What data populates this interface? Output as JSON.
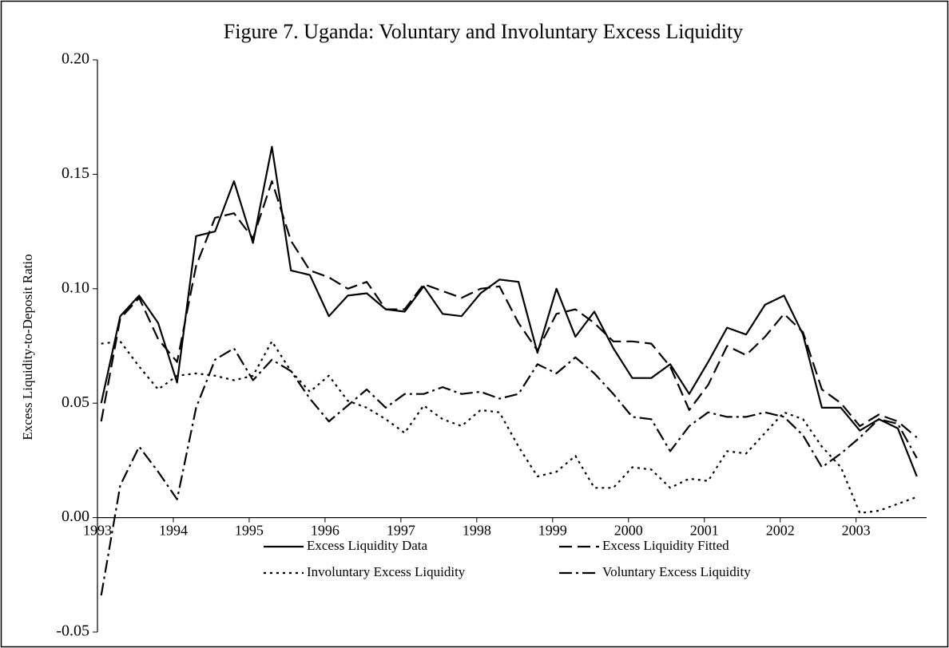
{
  "chart_data": {
    "type": "line",
    "title": "Figure 7. Uganda: Voluntary and Involuntary Excess Liquidity",
    "y_label": "Excess Liquidity-to-Deposit Ratio",
    "x": [
      1993.05,
      1993.3,
      1993.55,
      1993.8,
      1994.05,
      1994.3,
      1994.55,
      1994.8,
      1995.05,
      1995.3,
      1995.55,
      1995.8,
      1996.05,
      1996.3,
      1996.55,
      1996.8,
      1997.05,
      1997.3,
      1997.55,
      1997.8,
      1998.05,
      1998.3,
      1998.55,
      1998.8,
      1999.05,
      1999.3,
      1999.55,
      1999.8,
      2000.05,
      2000.3,
      2000.55,
      2000.8,
      2001.05,
      2001.3,
      2001.55,
      2001.8,
      2002.05,
      2002.3,
      2002.55,
      2002.8,
      2003.05,
      2003.3,
      2003.55,
      2003.8
    ],
    "series": [
      {
        "name": "Excess Liquidity Data",
        "color": "#000000",
        "dash": "none",
        "values": [
          0.05,
          0.088,
          0.097,
          0.085,
          0.059,
          0.123,
          0.125,
          0.147,
          0.12,
          0.162,
          0.108,
          0.106,
          0.088,
          0.097,
          0.098,
          0.091,
          0.09,
          0.101,
          0.089,
          0.088,
          0.098,
          0.104,
          0.103,
          0.072,
          0.1,
          0.079,
          0.09,
          0.074,
          0.061,
          0.061,
          0.067,
          0.054,
          0.068,
          0.083,
          0.08,
          0.093,
          0.097,
          0.08,
          0.048,
          0.048,
          0.038,
          0.043,
          0.039,
          0.018
        ]
      },
      {
        "name": "Excess Liquidity Fitted",
        "color": "#000000",
        "dash": "16,7",
        "values": [
          0.042,
          0.087,
          0.096,
          0.078,
          0.068,
          0.11,
          0.131,
          0.133,
          0.122,
          0.147,
          0.121,
          0.108,
          0.105,
          0.1,
          0.103,
          0.091,
          0.091,
          0.102,
          0.099,
          0.096,
          0.1,
          0.101,
          0.085,
          0.073,
          0.089,
          0.091,
          0.085,
          0.077,
          0.077,
          0.076,
          0.066,
          0.047,
          0.058,
          0.075,
          0.071,
          0.079,
          0.089,
          0.081,
          0.056,
          0.05,
          0.04,
          0.045,
          0.042,
          0.035
        ]
      },
      {
        "name": "Involuntary Excess Liquidity",
        "color": "#000000",
        "dash": "3,5",
        "values": [
          0.076,
          0.077,
          0.066,
          0.056,
          0.062,
          0.063,
          0.062,
          0.06,
          0.062,
          0.077,
          0.064,
          0.055,
          0.062,
          0.051,
          0.048,
          0.043,
          0.037,
          0.049,
          0.043,
          0.04,
          0.047,
          0.046,
          0.031,
          0.018,
          0.02,
          0.027,
          0.013,
          0.013,
          0.022,
          0.021,
          0.013,
          0.017,
          0.016,
          0.029,
          0.028,
          0.037,
          0.046,
          0.043,
          0.031,
          0.022,
          0.002,
          0.003,
          0.006,
          0.009
        ]
      },
      {
        "name": "Voluntary Excess Liquidity",
        "color": "#000000",
        "dash": "16,5,3,5",
        "values": [
          -0.034,
          0.014,
          0.031,
          0.02,
          0.008,
          0.048,
          0.069,
          0.074,
          0.06,
          0.069,
          0.064,
          0.052,
          0.042,
          0.049,
          0.056,
          0.048,
          0.054,
          0.054,
          0.057,
          0.054,
          0.055,
          0.052,
          0.054,
          0.067,
          0.063,
          0.07,
          0.063,
          0.054,
          0.044,
          0.043,
          0.029,
          0.04,
          0.046,
          0.044,
          0.044,
          0.046,
          0.044,
          0.036,
          0.022,
          0.028,
          0.035,
          0.043,
          0.041,
          0.026
        ]
      }
    ],
    "xlim": [
      1993,
      2003.93
    ],
    "xticks": [
      1993,
      1994,
      1995,
      1996,
      1997,
      1998,
      1999,
      2000,
      2001,
      2002,
      2003
    ],
    "ylim": [
      -0.05,
      0.2
    ],
    "yticks": [
      {
        "value": -0.05,
        "label": "-0.05"
      },
      {
        "value": 0,
        "label": "0.00"
      },
      {
        "value": 0.05,
        "label": "0.05"
      },
      {
        "value": 0.1,
        "label": "0.10"
      },
      {
        "value": 0.15,
        "label": "0.15"
      },
      {
        "value": 0.2,
        "label": "0.20"
      }
    ],
    "grid": false
  }
}
